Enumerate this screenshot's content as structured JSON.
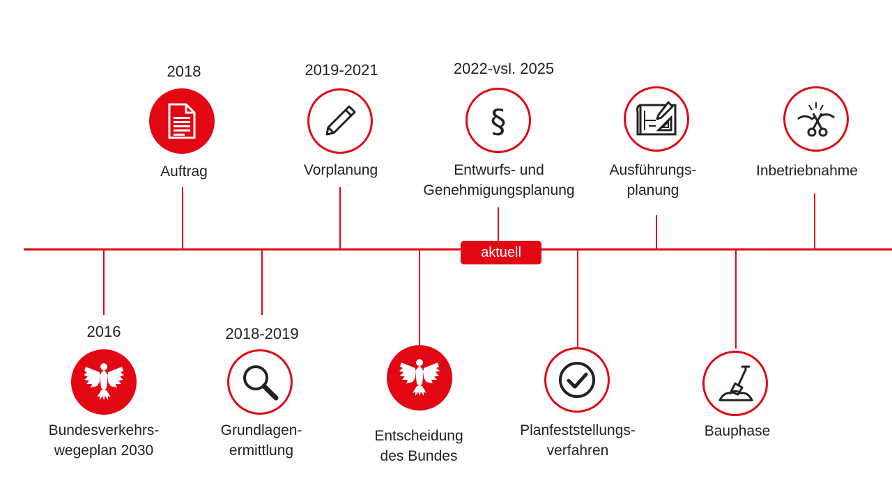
{
  "badge": "aktuell",
  "colors": {
    "accent": "#e30613",
    "text": "#222222"
  },
  "milestones": [
    {
      "year": "2016",
      "label_lines": [
        "Bundesverkehrs-",
        "wegeplan 2030"
      ],
      "icon": "federal-eagle-icon",
      "style": "filled"
    },
    {
      "year": "2018",
      "label_lines": [
        "Auftrag"
      ],
      "icon": "document-icon",
      "style": "filled"
    },
    {
      "year": "2018-2019",
      "label_lines": [
        "Grundlagen-",
        "ermittlung"
      ],
      "icon": "magnifier-icon",
      "style": "outline"
    },
    {
      "year": "2019-2021",
      "label_lines": [
        "Vorplanung"
      ],
      "icon": "pencil-icon",
      "style": "outline"
    },
    {
      "year": "",
      "label_lines": [
        "Entscheidung",
        "des Bundes"
      ],
      "icon": "federal-eagle-icon",
      "style": "filled"
    },
    {
      "year": "2022-vsl. 2025",
      "label_lines": [
        "Entwurfs- und",
        "Genehmigungsplanung"
      ],
      "icon": "paragraph-icon",
      "style": "outline"
    },
    {
      "year": "",
      "label_lines": [
        "Planfeststellungs-",
        "verfahren"
      ],
      "icon": "checkmark-icon",
      "style": "outline"
    },
    {
      "year": "",
      "label_lines": [
        "Ausführungs-",
        "planung"
      ],
      "icon": "blueprint-icon",
      "style": "outline"
    },
    {
      "year": "",
      "label_lines": [
        "Bauphase"
      ],
      "icon": "shovel-icon",
      "style": "outline"
    },
    {
      "year": "",
      "label_lines": [
        "Inbetriebnahme"
      ],
      "icon": "ribbon-cutting-icon",
      "style": "outline"
    }
  ]
}
